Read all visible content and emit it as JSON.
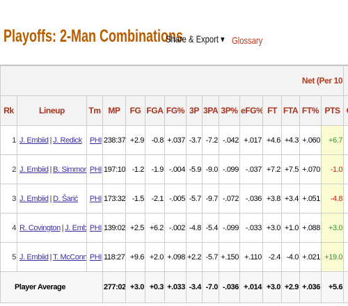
{
  "header": {
    "title": "Playoffs: 2-Man Combinations",
    "share_export": "Share & Export ▾",
    "glossary": "Glossary"
  },
  "table": {
    "group_header": "Net (Per 10",
    "columns": [
      "Rk",
      "Lineup",
      "Tm",
      "MP",
      "FG",
      "FGA",
      "FG%",
      "3P",
      "3PA",
      "3P%",
      "eFG%",
      "FT",
      "FTA",
      "FT%",
      "PTS",
      "O"
    ],
    "lineup_separator": "|",
    "rows": [
      {
        "rank": "1",
        "players": [
          "J. Embiid",
          "J. Redick"
        ],
        "team": "PHI",
        "stats": [
          "238:37",
          "+2.9",
          "-0.8",
          "+.037",
          "-3.7",
          "-7.2",
          "-.042",
          "+.017",
          "+4.6",
          "+4.3",
          "+.060",
          "+6.7",
          "+"
        ]
      },
      {
        "rank": "2",
        "players": [
          "J. Embiid",
          "B. Simmons"
        ],
        "team": "PHI",
        "stats": [
          "197:10",
          "-1.2",
          "-1.9",
          "-.004",
          "-5.9",
          "-9.0",
          "-.099",
          "-.037",
          "+7.2",
          "+7.5",
          "+.070",
          "-1.0",
          "+"
        ]
      },
      {
        "rank": "3",
        "players": [
          "J. Embiid",
          "D. Šarić"
        ],
        "team": "PHI",
        "stats": [
          "173:32",
          "-1.5",
          "-2.1",
          "-.005",
          "-5.7",
          "-9.7",
          "-.072",
          "-.036",
          "+3.8",
          "+3.4",
          "+.051",
          "-4.8",
          "+"
        ]
      },
      {
        "rank": "4",
        "players": [
          "R. Covington",
          "J. Embiid"
        ],
        "team": "PHI",
        "stats": [
          "139:02",
          "+2.5",
          "+6.2",
          "-.002",
          "-4.8",
          "-5.4",
          "-.099",
          "-.033",
          "+3.0",
          "+1.0",
          "+.088",
          "+3.0",
          "+"
        ]
      },
      {
        "rank": "5",
        "players": [
          "J. Embiid",
          "T. McConnell"
        ],
        "team": "PHI",
        "stats": [
          "118:27",
          "+9.6",
          "+2.0",
          "+.098",
          "+2.2",
          "-5.7",
          "+.150",
          "+.110",
          "-2.4",
          "-4.0",
          "+.021",
          "+19.0",
          "+"
        ]
      }
    ],
    "footer": {
      "label": "Player Average",
      "stats": [
        "277:02",
        "+3.0",
        "+0.3",
        "+.033",
        "-3.4",
        "-7.0",
        "-.036",
        "+.014",
        "+3.0",
        "+2.9",
        "+.036",
        "+5.6",
        "+"
      ]
    }
  }
}
